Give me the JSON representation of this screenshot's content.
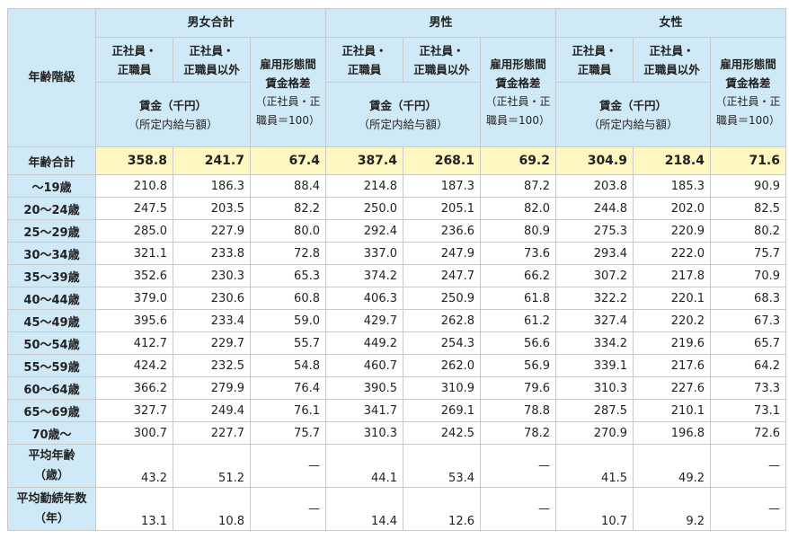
{
  "header": {
    "age_group": "年齢階級",
    "groups": [
      "男女合計",
      "男性",
      "女性"
    ],
    "col_regular": [
      "正社員・",
      "正職員"
    ],
    "col_nonregular": [
      "正社員・",
      "正職員以外"
    ],
    "col_gap": [
      "雇用形態間",
      "賃金格差",
      "（正社員・正",
      "職員＝100）"
    ],
    "wage": [
      "賃金（千円）",
      "（所定内給与額）"
    ]
  },
  "rows": [
    {
      "label": "年齢合計",
      "values": [
        "358.8",
        "241.7",
        "67.4",
        "387.4",
        "268.1",
        "69.2",
        "304.9",
        "218.4",
        "71.6"
      ]
    },
    {
      "label": "～19歳",
      "values": [
        "210.8",
        "186.3",
        "88.4",
        "214.8",
        "187.3",
        "87.2",
        "203.8",
        "185.3",
        "90.9"
      ]
    },
    {
      "label": "20～24歳",
      "values": [
        "247.5",
        "203.5",
        "82.2",
        "250.0",
        "205.1",
        "82.0",
        "244.8",
        "202.0",
        "82.5"
      ]
    },
    {
      "label": "25～29歳",
      "values": [
        "285.0",
        "227.9",
        "80.0",
        "292.4",
        "236.6",
        "80.9",
        "275.3",
        "220.9",
        "80.2"
      ]
    },
    {
      "label": "30～34歳",
      "values": [
        "321.1",
        "233.8",
        "72.8",
        "337.0",
        "247.9",
        "73.6",
        "293.4",
        "222.0",
        "75.7"
      ]
    },
    {
      "label": "35～39歳",
      "values": [
        "352.6",
        "230.3",
        "65.3",
        "374.2",
        "247.7",
        "66.2",
        "307.2",
        "217.8",
        "70.9"
      ]
    },
    {
      "label": "40～44歳",
      "values": [
        "379.0",
        "230.6",
        "60.8",
        "406.3",
        "250.9",
        "61.8",
        "322.2",
        "220.1",
        "68.3"
      ]
    },
    {
      "label": "45～49歳",
      "values": [
        "395.6",
        "233.4",
        "59.0",
        "429.7",
        "262.8",
        "61.2",
        "327.4",
        "220.2",
        "67.3"
      ]
    },
    {
      "label": "50～54歳",
      "values": [
        "412.7",
        "229.7",
        "55.7",
        "449.2",
        "254.3",
        "56.6",
        "334.2",
        "219.6",
        "65.7"
      ]
    },
    {
      "label": "55～59歳",
      "values": [
        "424.2",
        "232.5",
        "54.8",
        "460.7",
        "262.0",
        "56.9",
        "339.1",
        "217.6",
        "64.2"
      ]
    },
    {
      "label": "60～64歳",
      "values": [
        "366.2",
        "279.9",
        "76.4",
        "390.5",
        "310.9",
        "79.6",
        "310.3",
        "227.6",
        "73.3"
      ]
    },
    {
      "label": "65～69歳",
      "values": [
        "327.7",
        "249.4",
        "76.1",
        "341.7",
        "269.1",
        "78.8",
        "287.5",
        "210.1",
        "73.1"
      ]
    },
    {
      "label": "70歳～",
      "values": [
        "300.7",
        "227.7",
        "75.7",
        "310.3",
        "242.5",
        "78.2",
        "270.9",
        "196.8",
        "72.6"
      ]
    }
  ],
  "footer_rows": [
    {
      "label": [
        "平均年齢",
        "（歳）"
      ],
      "values": [
        "43.2",
        "51.2",
        "—",
        "44.1",
        "53.4",
        "—",
        "41.5",
        "49.2",
        "—"
      ]
    },
    {
      "label": [
        "平均勤続年数",
        "（年）"
      ],
      "values": [
        "13.1",
        "10.8",
        "—",
        "14.4",
        "12.6",
        "—",
        "10.7",
        "9.2",
        "—"
      ]
    }
  ]
}
